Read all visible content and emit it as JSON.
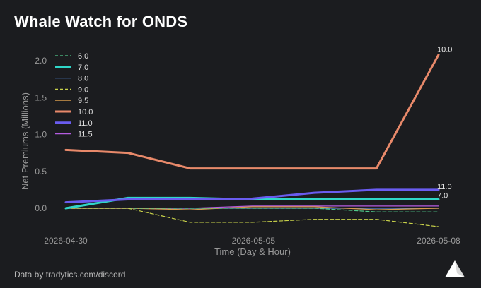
{
  "header": {
    "title": "Whale Watch for ONDS"
  },
  "footer": {
    "text": "Data by tradytics.com/discord"
  },
  "colors": {
    "background": "#1b1c1f",
    "axis_text": "#9a9a9a"
  },
  "chart_data": {
    "type": "line",
    "title": "Whale Watch for ONDS",
    "xlabel": "Time (Day & Hour)",
    "ylabel": "Net Premiums (Millions)",
    "x_tick_labels": [
      "2026-04-30",
      "2026-05-05",
      "2026-05-08"
    ],
    "y_ticks": [
      0.0,
      0.5,
      1.0,
      1.5,
      2.0
    ],
    "y_tick_labels": [
      "0.0",
      "0.5",
      "1.0",
      "1.5",
      "2.0"
    ],
    "ylim": [
      -0.25,
      2.1
    ],
    "x": [
      0,
      1,
      2,
      3,
      4,
      5,
      6
    ],
    "grid": false,
    "legend": "top-left",
    "series": [
      {
        "name": "6.0",
        "color": "#4fc98a",
        "dash": true,
        "width": 1.2,
        "values": [
          0.0,
          0.0,
          0.0,
          0.0,
          0.0,
          -0.05,
          -0.05
        ]
      },
      {
        "name": "7.0",
        "color": "#2fd6c8",
        "dash": false,
        "width": 3,
        "values": [
          0.0,
          0.14,
          0.14,
          0.12,
          0.12,
          0.12,
          0.12
        ],
        "end_label": "7.0"
      },
      {
        "name": "8.0",
        "color": "#4f86d6",
        "dash": false,
        "width": 1.2,
        "values": [
          0.0,
          0.0,
          0.0,
          0.0,
          0.0,
          0.0,
          0.0
        ]
      },
      {
        "name": "9.0",
        "color": "#c9d24a",
        "dash": true,
        "width": 1.2,
        "values": [
          0.0,
          0.0,
          -0.19,
          -0.19,
          -0.15,
          -0.15,
          -0.25
        ]
      },
      {
        "name": "9.5",
        "color": "#d59a4c",
        "dash": false,
        "width": 1.2,
        "values": [
          0.0,
          0.0,
          -0.02,
          0.02,
          0.02,
          -0.02,
          0.0
        ]
      },
      {
        "name": "10.0",
        "color": "#e8896a",
        "dash": false,
        "width": 3,
        "values": [
          0.79,
          0.75,
          0.54,
          0.54,
          0.54,
          0.54,
          2.08
        ],
        "end_label": "10.0"
      },
      {
        "name": "11.0",
        "color": "#6a5cf0",
        "dash": false,
        "width": 3,
        "values": [
          0.08,
          0.12,
          0.12,
          0.13,
          0.21,
          0.25,
          0.25
        ],
        "end_label": "11.0"
      },
      {
        "name": "11.5",
        "color": "#b45ce0",
        "dash": false,
        "width": 1.2,
        "values": [
          0.0,
          0.0,
          0.0,
          0.03,
          0.03,
          0.03,
          0.03
        ]
      }
    ]
  }
}
